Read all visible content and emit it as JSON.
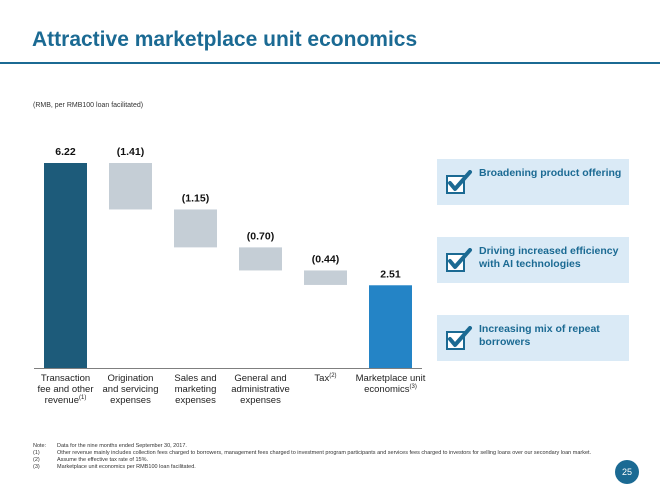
{
  "title": "Attractive marketplace unit economics",
  "unit_note": "(RMB, per RMB100 loan facilitated)",
  "chart_data": {
    "type": "bar",
    "subtype": "waterfall",
    "title": "",
    "categories": [
      {
        "lines": [
          "Transaction",
          "fee and other",
          "revenue"
        ],
        "sup": "(1)",
        "sup_line": 2
      },
      {
        "lines": [
          "Origination",
          "and servicing",
          "expenses"
        ],
        "sup": "",
        "sup_line": -1
      },
      {
        "lines": [
          "Sales and",
          "marketing",
          "expenses"
        ],
        "sup": "",
        "sup_line": -1
      },
      {
        "lines": [
          "General and",
          "administrative",
          "expenses"
        ],
        "sup": "",
        "sup_line": -1
      },
      {
        "lines": [
          "Tax"
        ],
        "sup": "(2)",
        "sup_line": 0
      },
      {
        "lines": [
          "Marketplace unit",
          "economics"
        ],
        "sup": "(3)",
        "sup_line": 1
      }
    ],
    "values": [
      6.22,
      -1.41,
      -1.15,
      -0.7,
      -0.44,
      2.51
    ],
    "value_labels": [
      "6.22",
      "(1.41)",
      "(1.15)",
      "(0.70)",
      "(0.44)",
      "2.51"
    ],
    "bar_kinds": [
      "total",
      "decrease",
      "decrease",
      "decrease",
      "decrease",
      "total"
    ],
    "ylim": [
      0,
      6.22
    ],
    "grid": false,
    "colors": {
      "start_total": "#1d5b7a",
      "end_total": "#2484c6",
      "decrease": "#c5ced6"
    }
  },
  "callouts": [
    {
      "icon": "checkbox-checked-icon",
      "text": "Broadening product offering"
    },
    {
      "icon": "checkbox-checked-icon",
      "text": "Driving increased efficiency with AI technologies"
    },
    {
      "icon": "checkbox-checked-icon",
      "text": "Increasing mix of repeat borrowers"
    }
  ],
  "notes": [
    {
      "mark": "Note:",
      "text": "Data for the nine months ended September 30, 2017."
    },
    {
      "mark": "(1)",
      "text": "Other revenue mainly includes collection fees charged to borrowers, management fees charged to investment program participants and services fees charged to investors for selling loans over our secondary loan market."
    },
    {
      "mark": "(2)",
      "text": "Assume the effective tax rate of 15%."
    },
    {
      "mark": "(3)",
      "text": "Marketplace unit economics per RMB100 loan facilitated."
    }
  ],
  "page_number": "25",
  "colors": {
    "accent": "#1b6a93",
    "callout_bg": "#daeaf6"
  }
}
